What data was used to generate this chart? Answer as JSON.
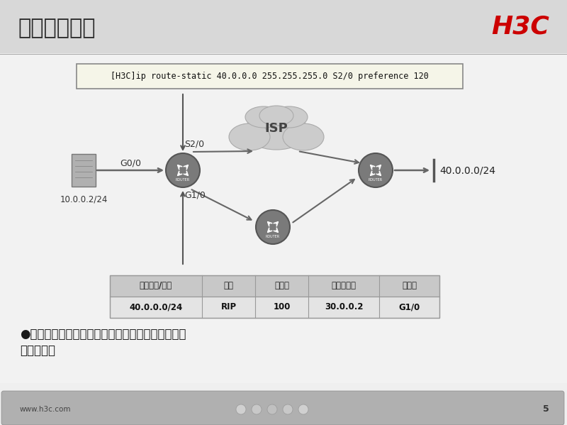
{
  "title": "浮动静态路由",
  "h3c_logo": "H3C",
  "slide_bg": "#efefef",
  "header_bg": "#d8d8d8",
  "command_text": "[H3C]ip route-static 40.0.0.0 255.255.255.0 S2/0 preference 120",
  "isp_label": "ISP",
  "left_device_label": "10.0.0.2/24",
  "right_network_label": "40.0.0.0/24",
  "g00_label": "G0/0",
  "s20_label": "S2/0",
  "g10_label": "G1/0",
  "table_headers": [
    "目的地址/掩码",
    "来源",
    "优先级",
    "下一跳地址",
    "出接口"
  ],
  "table_row": [
    "40.0.0.0/24",
    "RIP",
    "100",
    "30.0.0.2",
    "G1/0"
  ],
  "footer_line1": "●配置的备份静态路由优先级小于当前路由，称为浮",
  "footer_line2": "动静态路由",
  "website": "www.h3c.com",
  "page_num": "5",
  "router_color": "#7a7a7a",
  "router_edge": "#555555",
  "cloud_color": "#cccccc",
  "cloud_edge": "#aaaaaa",
  "arrow_color": "#666666",
  "cmd_box_bg": "#f5f5e8",
  "table_hdr_bg": "#c8c8c8",
  "table_row_bg": "#e4e4e4",
  "table_edge": "#999999"
}
